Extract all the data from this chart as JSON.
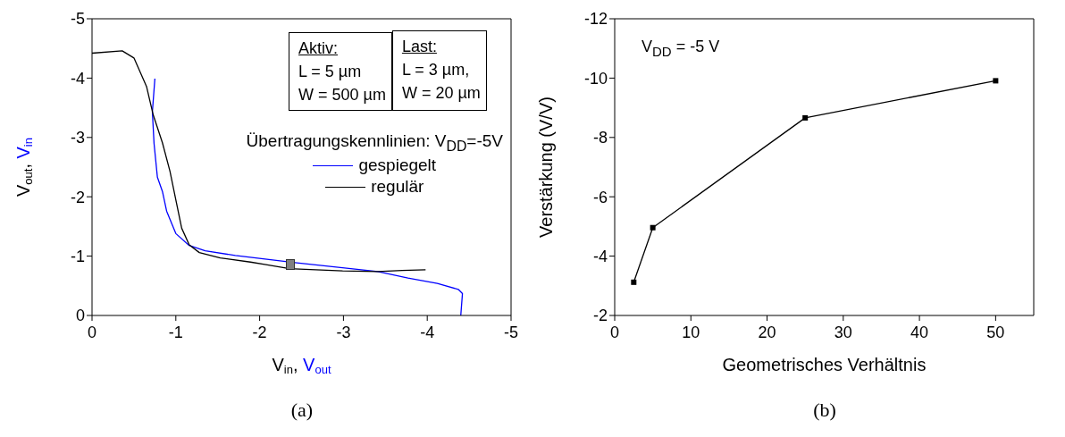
{
  "chart_data": [
    {
      "type": "line",
      "xlabel": "V$_{in}$, V$_{out}$",
      "ylabel": "V$_{out}$, V$_{in}$",
      "legend_title": "Übertragungskennlinien: V$_{DD}$=-5V",
      "legend": "right",
      "xlim": [
        0,
        -5
      ],
      "ylim": [
        0,
        -5
      ],
      "xticks": [
        0,
        -1,
        -2,
        -3,
        -4,
        -5
      ],
      "yticks": [
        0,
        -1,
        -2,
        -3,
        -4,
        -5
      ],
      "grid": false,
      "marker": "none",
      "line_style": "solid",
      "series": [
        {
          "name": "gespiegelt",
          "color": "#0000ff",
          "x": [
            -0.75,
            -0.72,
            -0.74,
            -0.78,
            -0.84,
            -0.89,
            -1.0,
            -1.16,
            -1.35,
            -1.71,
            -2.42,
            -3.41,
            -3.77,
            -4.12,
            -4.37,
            -4.42,
            -4.4
          ],
          "values": [
            -3.99,
            -3.43,
            -2.9,
            -2.33,
            -2.09,
            -1.76,
            -1.38,
            -1.18,
            -1.09,
            -1.01,
            -0.89,
            -0.74,
            -0.63,
            -0.54,
            -0.44,
            -0.37,
            0
          ]
        },
        {
          "name": "regulär",
          "color": "#000000",
          "x": [
            0,
            -0.36,
            -0.5,
            -0.65,
            -0.73,
            -0.84,
            -0.93,
            -1.0,
            -1.07,
            -1.16,
            -1.28,
            -1.53,
            -1.89,
            -2.06,
            -2.31,
            -2.35,
            -2.99,
            -3.41,
            -3.7,
            -3.98
          ],
          "values": [
            -4.42,
            -4.46,
            -4.34,
            -3.86,
            -3.38,
            -2.91,
            -2.43,
            -1.95,
            -1.47,
            -1.19,
            -1.06,
            -0.97,
            -0.9,
            -0.86,
            -0.8,
            -0.79,
            -0.75,
            -0.74,
            -0.76,
            -0.77
          ]
        }
      ],
      "annotations": [
        "Aktiv:",
        "L = 5 µm",
        "W = 500 µm",
        "Last:",
        "L = 3 µm,",
        "W = 20 µm",
        "(a)"
      ]
    },
    {
      "type": "line",
      "xlabel": "Geometrisches Verhältnis",
      "ylabel": "Verstärkung (V/V)",
      "xlim": [
        0,
        55
      ],
      "ylim": [
        -2,
        -12
      ],
      "xticks": [
        0,
        10,
        20,
        30,
        40,
        50
      ],
      "yticks": [
        -2,
        -4,
        -6,
        -8,
        -10,
        -12
      ],
      "grid": false,
      "marker": "square",
      "line_style": "solid",
      "series": [
        {
          "color": "#000000",
          "x": [
            2.5,
            5,
            25,
            50
          ],
          "values": [
            -3.12,
            -4.96,
            -8.66,
            -9.91
          ]
        }
      ],
      "annotations": [
        "V$_{DD}$ = -5 V",
        "(b)"
      ]
    }
  ]
}
